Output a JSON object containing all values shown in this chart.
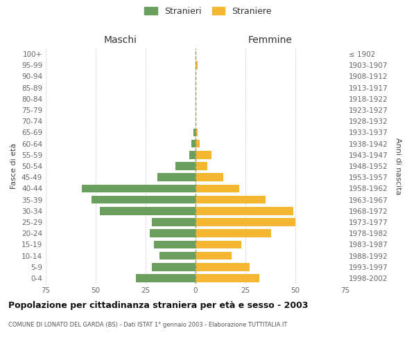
{
  "age_groups": [
    "0-4",
    "5-9",
    "10-14",
    "15-19",
    "20-24",
    "25-29",
    "30-34",
    "35-39",
    "40-44",
    "45-49",
    "50-54",
    "55-59",
    "60-64",
    "65-69",
    "70-74",
    "75-79",
    "80-84",
    "85-89",
    "90-94",
    "95-99",
    "100+"
  ],
  "birth_years": [
    "1998-2002",
    "1993-1997",
    "1988-1992",
    "1983-1987",
    "1978-1982",
    "1973-1977",
    "1968-1972",
    "1963-1967",
    "1958-1962",
    "1953-1957",
    "1948-1952",
    "1943-1947",
    "1938-1942",
    "1933-1937",
    "1928-1932",
    "1923-1927",
    "1918-1922",
    "1913-1917",
    "1908-1912",
    "1903-1907",
    "≤ 1902"
  ],
  "males": [
    30,
    22,
    18,
    21,
    23,
    22,
    48,
    52,
    57,
    19,
    10,
    3,
    2,
    1,
    0,
    0,
    0,
    0,
    0,
    0,
    0
  ],
  "females": [
    32,
    27,
    18,
    23,
    38,
    50,
    49,
    35,
    22,
    14,
    6,
    8,
    2,
    1,
    0,
    0,
    0,
    0,
    0,
    1,
    0
  ],
  "male_color": "#6a9f5e",
  "female_color": "#f5b731",
  "title": "Popolazione per cittadinanza straniera per età e sesso - 2003",
  "subtitle": "COMUNE DI LONATO DEL GARDA (BS) - Dati ISTAT 1° gennaio 2003 - Elaborazione TUTTITALIA.IT",
  "xlabel_left": "Maschi",
  "xlabel_right": "Femmine",
  "ylabel_left": "Fasce di età",
  "ylabel_right": "Anni di nascita",
  "legend_male": "Stranieri",
  "legend_female": "Straniere",
  "xlim": 75,
  "background_color": "#ffffff",
  "grid_color": "#cccccc"
}
